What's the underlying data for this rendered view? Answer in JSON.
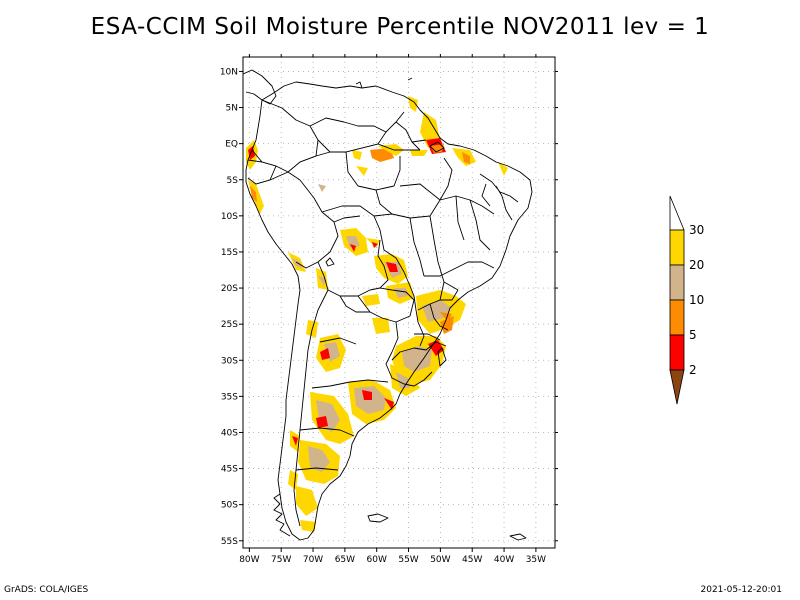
{
  "title": "ESA-CCIM Soil Moisture Percentile NOV2011 lev = 1",
  "footer": {
    "left": "GrADS: COLA/IGES",
    "right": "2021-05-12-20:01"
  },
  "map": {
    "lon_range": [
      -81,
      -32
    ],
    "lat_range": [
      -56,
      12
    ],
    "lon_ticks": [
      {
        "value": -80,
        "label": "80W"
      },
      {
        "value": -75,
        "label": "75W"
      },
      {
        "value": -70,
        "label": "70W"
      },
      {
        "value": -65,
        "label": "65W"
      },
      {
        "value": -60,
        "label": "60W"
      },
      {
        "value": -55,
        "label": "55W"
      },
      {
        "value": -50,
        "label": "50W"
      },
      {
        "value": -45,
        "label": "45W"
      },
      {
        "value": -40,
        "label": "40W"
      },
      {
        "value": -35,
        "label": "35W"
      }
    ],
    "lat_ticks": [
      {
        "value": 10,
        "label": "10N"
      },
      {
        "value": 5,
        "label": "5N"
      },
      {
        "value": 0,
        "label": "EQ"
      },
      {
        "value": -5,
        "label": "5S"
      },
      {
        "value": -10,
        "label": "10S"
      },
      {
        "value": -15,
        "label": "15S"
      },
      {
        "value": -20,
        "label": "20S"
      },
      {
        "value": -25,
        "label": "25S"
      },
      {
        "value": -30,
        "label": "30S"
      },
      {
        "value": -35,
        "label": "35S"
      },
      {
        "value": -40,
        "label": "40S"
      },
      {
        "value": -45,
        "label": "45S"
      },
      {
        "value": -50,
        "label": "50S"
      },
      {
        "value": -55,
        "label": "55S"
      }
    ],
    "grid": true,
    "grid_color": "#aaaaaa"
  },
  "colorbar": {
    "placement": "right",
    "triangle_top_color": "#ffffff",
    "triangle_bottom_color": "#8b4513",
    "bins": [
      {
        "color": "#ffd700"
      },
      {
        "color": "#d2b48c"
      },
      {
        "color": "#ff8c00"
      },
      {
        "color": "#ff0000"
      }
    ],
    "labels": [
      "30",
      "20",
      "10",
      "5",
      "2"
    ]
  },
  "colors": {
    "coast": "#000000",
    "percentile_lt2": "#8b4513",
    "percentile_2_5": "#ff0000",
    "percentile_5_10": "#ff8c00",
    "percentile_10_20": "#d2b48c",
    "percentile_20_30": "#ffd700"
  }
}
